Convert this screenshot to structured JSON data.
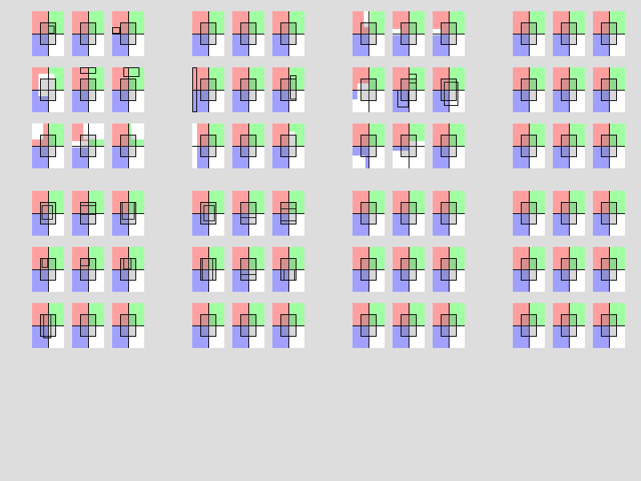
{
  "colors": {
    "background": "#dddddd",
    "tile_base": "#ffffff",
    "quadrant_top_left": "#ffa0a0",
    "quadrant_top_right": "#a0ffa0",
    "quadrant_bottom_left": "#a0a0ff",
    "quadrant_bottom_right": "#ffffff",
    "line": "#000000",
    "center_box": "#606060"
  },
  "grid": {
    "group_count": 8,
    "rows_per_group": 3,
    "tiles_per_row": 3,
    "tile_count": 72
  }
}
